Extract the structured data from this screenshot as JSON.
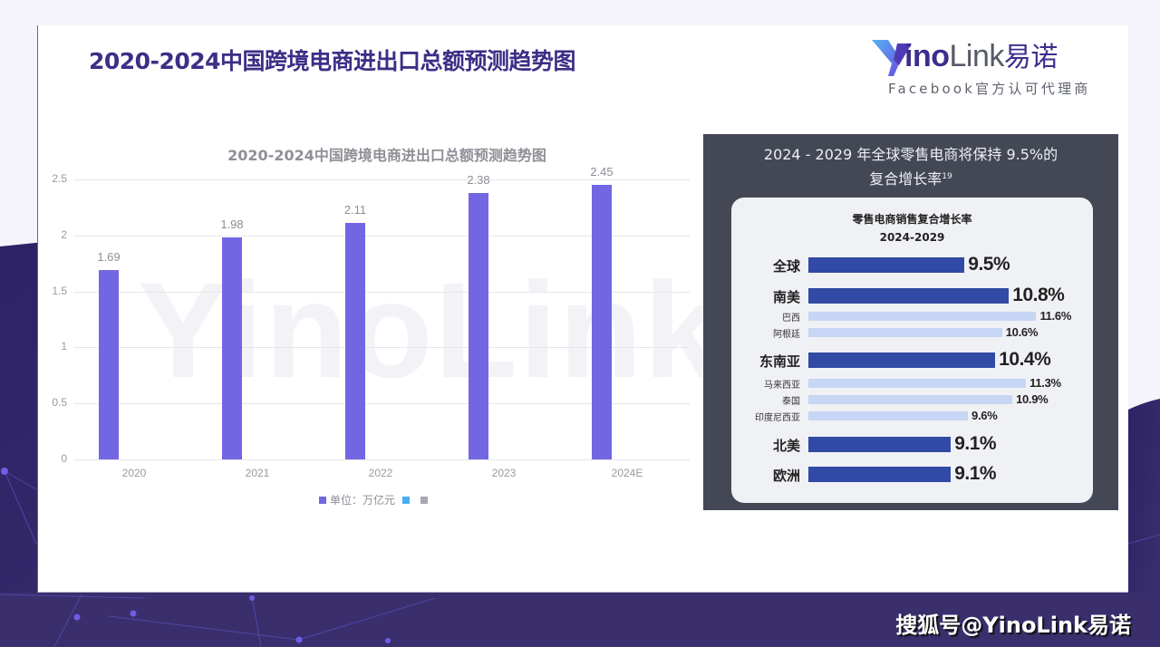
{
  "page": {
    "title": "2020-2024中国跨境电商进出口总额预测趋势图",
    "footer_credit": "搜狐号@YinoLink易诺"
  },
  "logo": {
    "word_bold": "ino",
    "word_light": "Link",
    "word_cn": "易诺",
    "subtitle": "Facebook官方认可代理商"
  },
  "colors": {
    "title": "#3b2f86",
    "bar": "#7266e3",
    "legend_blue": "#4aaef2",
    "legend_gray": "#a8a8b0",
    "panel_bg": "#434854",
    "region_bar": "#314aa5",
    "country_bar": "#c6d6f4",
    "background_purple": "#3a2f6c"
  },
  "watermark": "YinoLink",
  "chart_data": [
    {
      "type": "bar",
      "title": "2020-2024中国跨境电商进出口总额预测趋势图",
      "categories": [
        "2020",
        "2021",
        "2022",
        "2023",
        "2024E"
      ],
      "values": [
        1.69,
        1.98,
        2.11,
        2.38,
        2.45
      ],
      "value_labels": [
        "1.69",
        "1.98",
        "2.11",
        "2.38",
        "2.45"
      ],
      "xlabel": "",
      "ylabel": "",
      "ylim": [
        0,
        2.5
      ],
      "yticks": [
        "0",
        "0.5",
        "1",
        "1.5",
        "2",
        "2.5"
      ],
      "grid": true,
      "legend": {
        "position": "bottom",
        "entries": [
          "单位：万亿元",
          "",
          ""
        ]
      }
    },
    {
      "type": "bar",
      "orientation": "horizontal",
      "panel_title_line1": "2024 - 2029 年全球零售电商将保持 9.5%的",
      "panel_title_line2": "复合增长率",
      "panel_title_footnote": "19",
      "title": "零售电商销售复合增长率",
      "subtitle": "2024-2029",
      "rows": [
        {
          "label": "全球",
          "value": 9.5,
          "display": "9.5%",
          "level": "region"
        },
        {
          "label": "南美",
          "value": 10.8,
          "display": "10.8%",
          "level": "region"
        },
        {
          "label": "巴西",
          "value": 11.6,
          "display": "11.6%",
          "level": "country"
        },
        {
          "label": "阿根廷",
          "value": 10.6,
          "display": "10.6%",
          "level": "country"
        },
        {
          "label": "东南亚",
          "value": 10.4,
          "display": "10.4%",
          "level": "region"
        },
        {
          "label": "马来西亚",
          "value": 11.3,
          "display": "11.3%",
          "level": "country"
        },
        {
          "label": "泰国",
          "value": 10.9,
          "display": "10.9%",
          "level": "country"
        },
        {
          "label": "印度尼西亚",
          "value": 9.6,
          "display": "9.6%",
          "level": "country"
        },
        {
          "label": "北美",
          "value": 9.1,
          "display": "9.1%",
          "level": "region"
        },
        {
          "label": "欧洲",
          "value": 9.1,
          "display": "9.1%",
          "level": "region"
        }
      ]
    }
  ]
}
